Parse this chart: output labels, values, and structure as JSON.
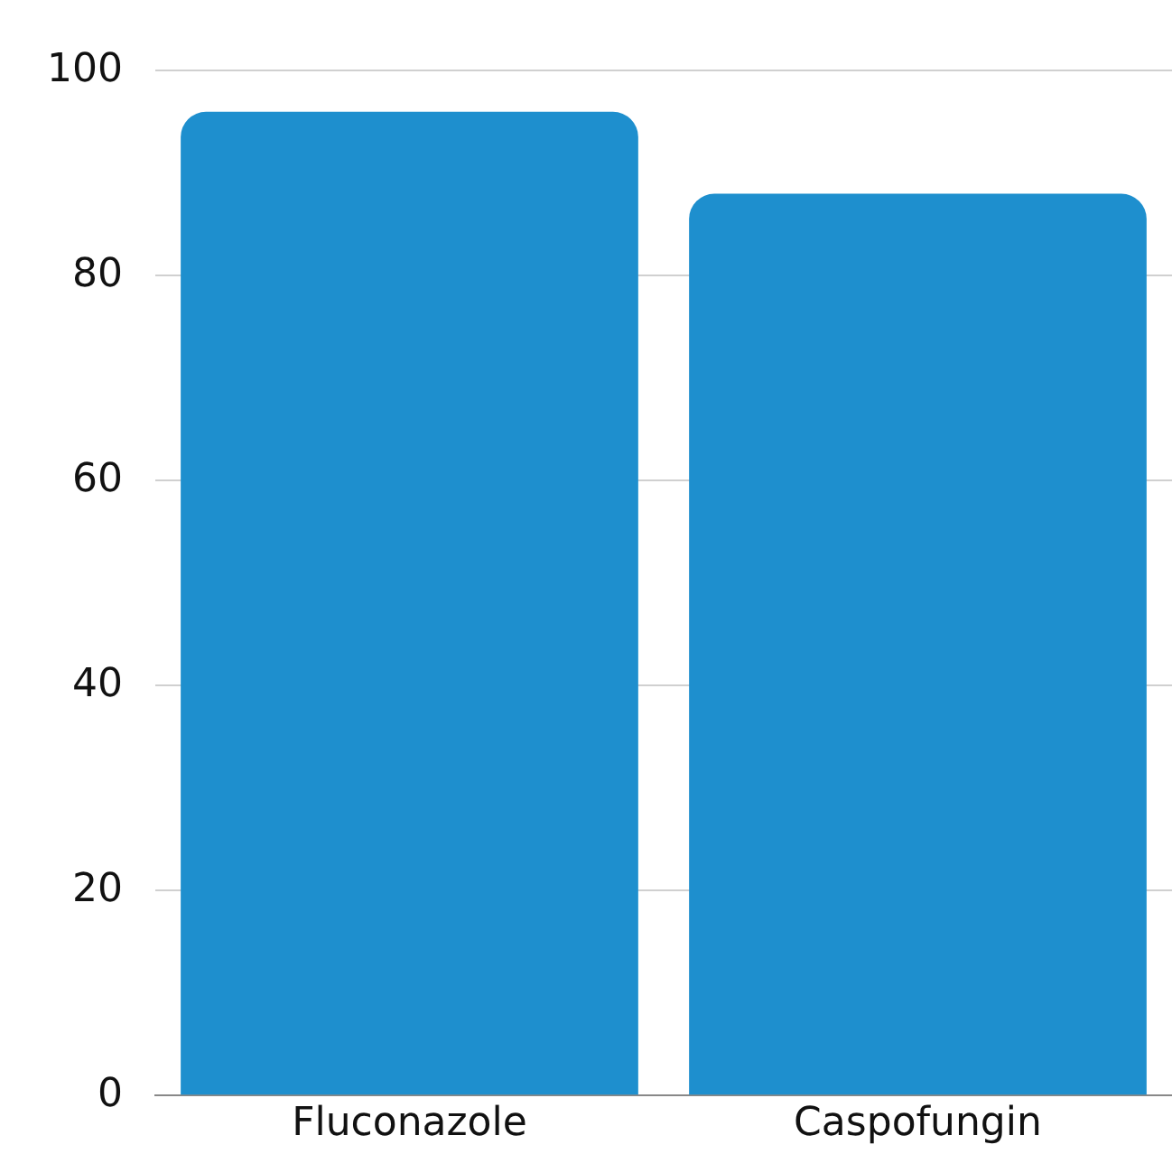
{
  "chart_data": {
    "type": "bar",
    "categories": [
      "Fluconazole",
      "Caspofungin"
    ],
    "values": [
      96,
      88
    ],
    "color": "#1e8fce",
    "ylim": [
      0,
      100
    ],
    "yticks": [
      0,
      20,
      40,
      60,
      80,
      100
    ],
    "grid": "y"
  }
}
